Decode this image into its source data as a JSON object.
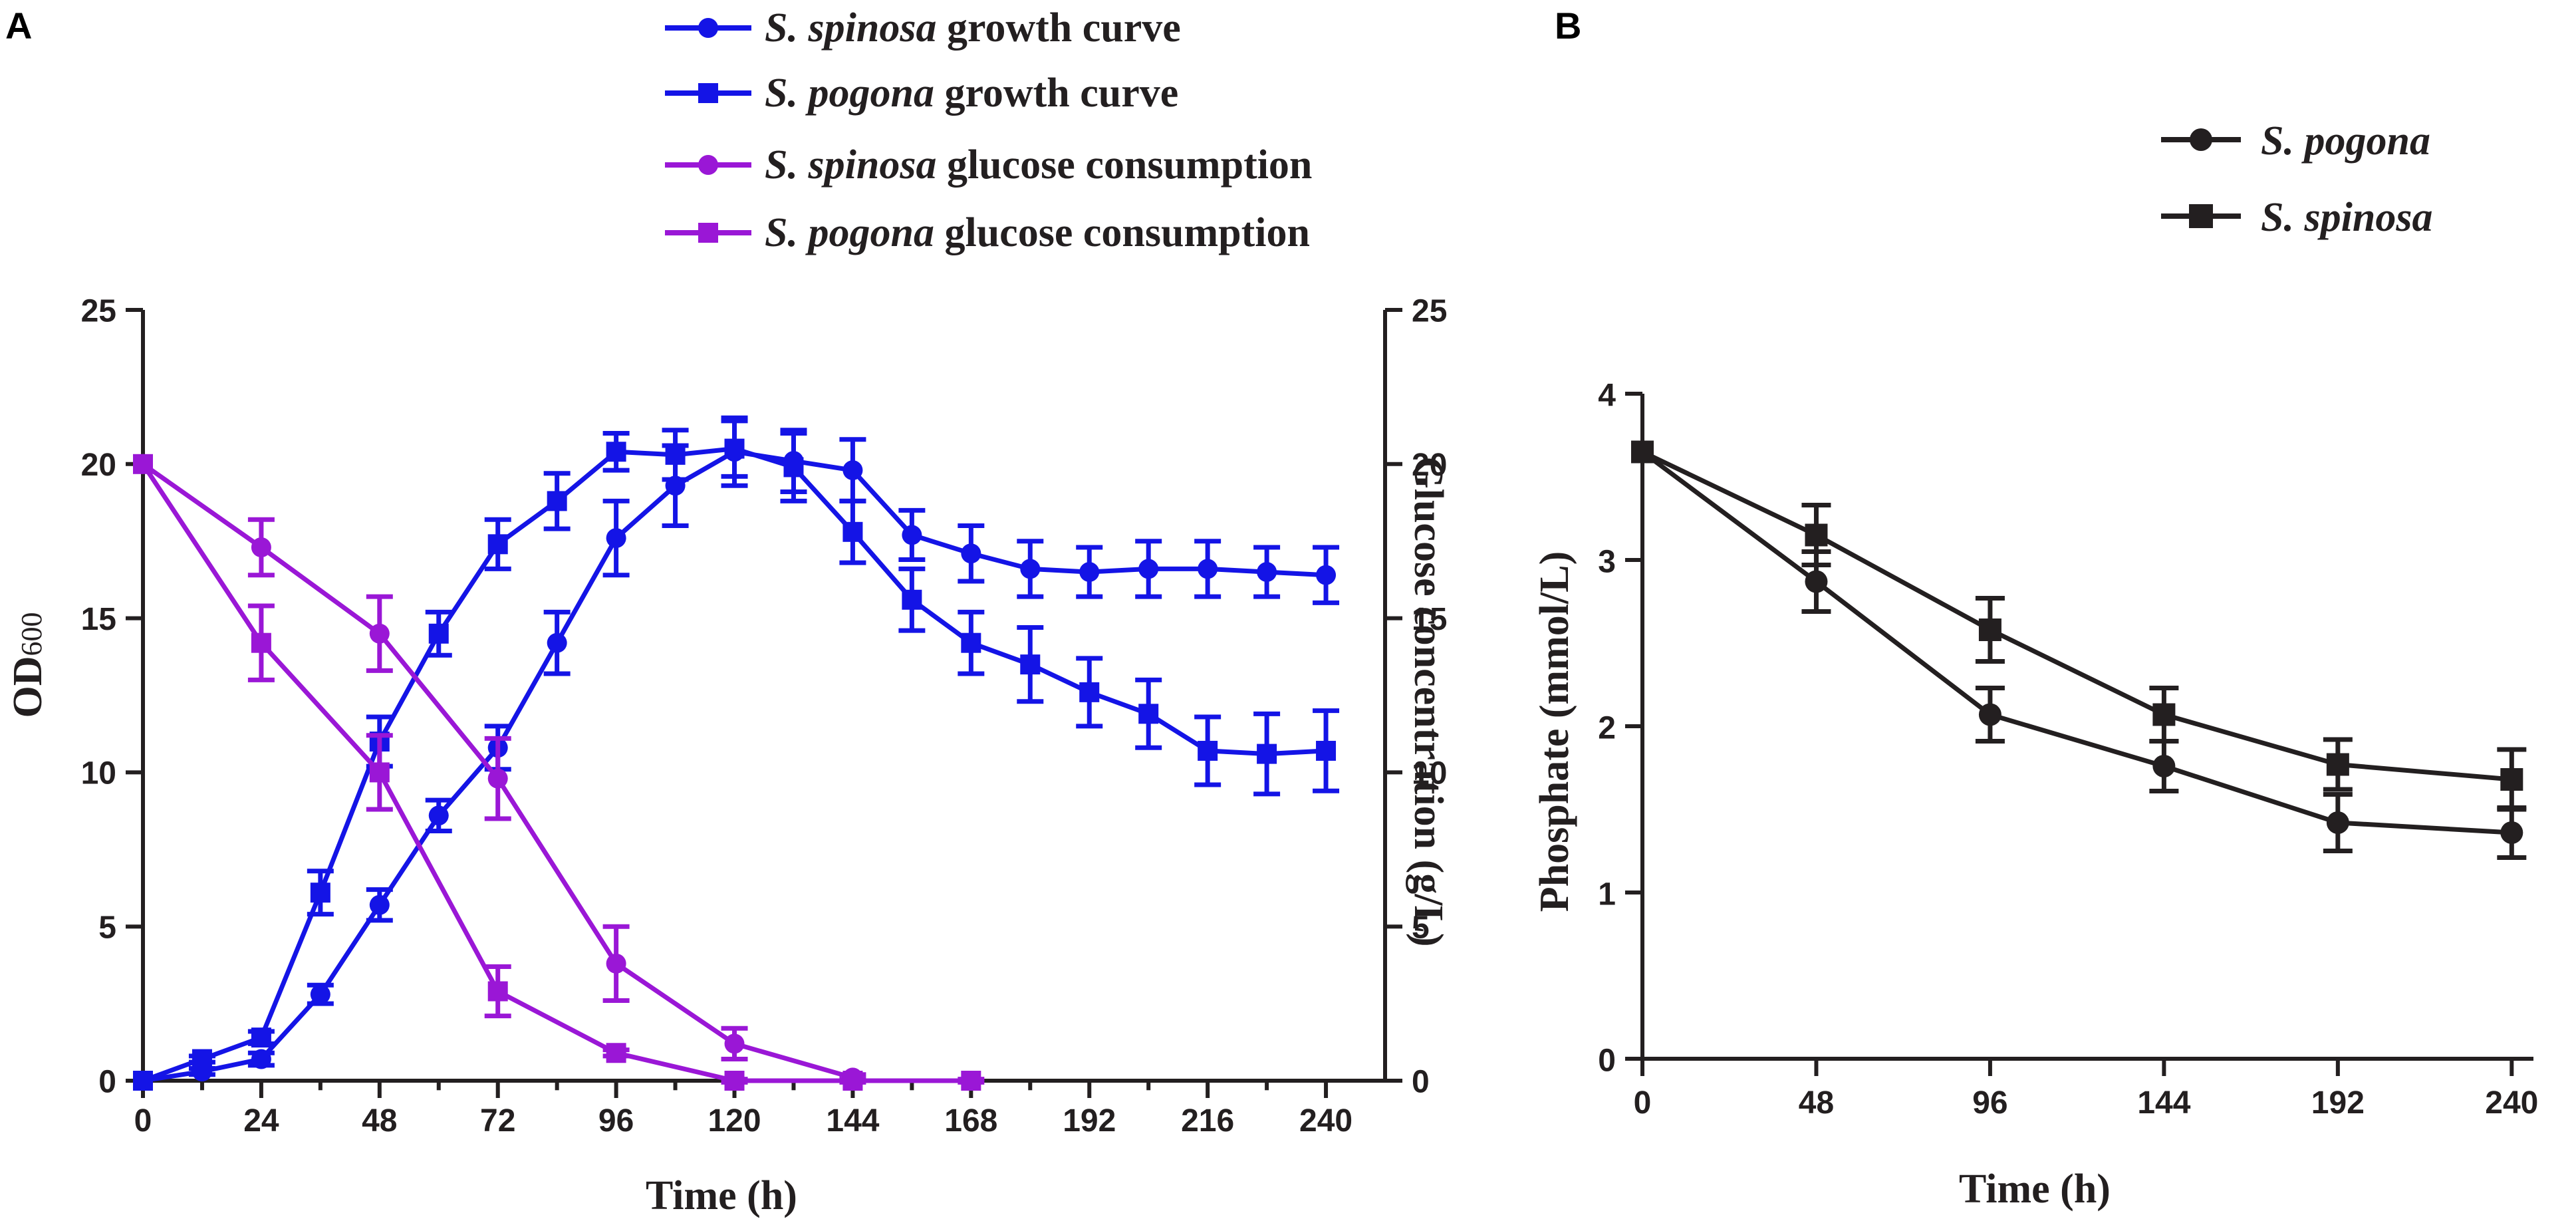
{
  "panels": {
    "A": "A",
    "B": "B"
  },
  "colors": {
    "blue": "#1414e6",
    "purple": "#9a17d6",
    "black": "#231f20"
  },
  "chart_data": [
    {
      "type": "line",
      "panel": "A",
      "title": "",
      "xlabel": "Time (h)",
      "ylabel": "OD600",
      "ylabel_main": "OD",
      "ylabel_sub": "600",
      "y2label": "Glucose concentration (g/L)",
      "xlim": [
        0,
        252
      ],
      "ylim": [
        0,
        25
      ],
      "y2lim": [
        0,
        25
      ],
      "xticks": [
        "0",
        "24",
        "48",
        "72",
        "96",
        "120",
        "144",
        "168",
        "192",
        "216",
        "240"
      ],
      "yticks": [
        "0",
        "5",
        "10",
        "15",
        "20",
        "25"
      ],
      "y2ticks": [
        "0",
        "5",
        "10",
        "15",
        "20",
        "25"
      ],
      "legend_position": "top",
      "series": [
        {
          "name": "S. spinosa growth curve",
          "legend_species": "S. spinosa",
          "legend_rest": " growth curve",
          "color": "blue",
          "marker": "circle",
          "axis": "left",
          "x": [
            0,
            12,
            24,
            36,
            48,
            60,
            72,
            84,
            96,
            108,
            120,
            132,
            144,
            156,
            168,
            180,
            192,
            204,
            216,
            228,
            240
          ],
          "y": [
            0,
            0.3,
            0.7,
            2.8,
            5.7,
            8.6,
            10.8,
            14.2,
            17.6,
            19.3,
            20.4,
            20.1,
            19.8,
            17.7,
            17.1,
            16.6,
            16.5,
            16.6,
            16.6,
            16.5,
            16.4
          ],
          "err": [
            0,
            0.1,
            0.2,
            0.3,
            0.5,
            0.5,
            0.7,
            1.0,
            1.2,
            1.3,
            1.1,
            1.0,
            1.0,
            0.8,
            0.9,
            0.9,
            0.8,
            0.9,
            0.9,
            0.8,
            0.9
          ]
        },
        {
          "name": "S. pogona growth curve",
          "legend_species": "S. pogona",
          "legend_rest": " growth curve",
          "color": "blue",
          "marker": "square",
          "axis": "left",
          "x": [
            0,
            12,
            24,
            36,
            48,
            60,
            72,
            84,
            96,
            108,
            120,
            132,
            144,
            156,
            168,
            180,
            192,
            204,
            216,
            228,
            240
          ],
          "y": [
            0,
            0.7,
            1.4,
            6.1,
            11.0,
            14.5,
            17.4,
            18.8,
            20.4,
            20.3,
            20.5,
            19.9,
            17.8,
            15.6,
            14.2,
            13.5,
            12.6,
            11.9,
            10.7,
            10.6,
            10.7
          ],
          "err": [
            0,
            0.1,
            0.2,
            0.7,
            0.8,
            0.7,
            0.8,
            0.9,
            0.6,
            0.8,
            0.9,
            1.1,
            1.0,
            1.0,
            1.0,
            1.2,
            1.1,
            1.1,
            1.1,
            1.3,
            1.3
          ]
        },
        {
          "name": "S. spinosa glucose consumption",
          "legend_species": "S. spinosa",
          "legend_rest": " glucose consumption",
          "color": "purple",
          "marker": "circle",
          "axis": "right",
          "x": [
            0,
            24,
            48,
            72,
            96,
            120,
            144
          ],
          "y": [
            20,
            17.3,
            14.5,
            9.8,
            3.8,
            1.2,
            0.1
          ],
          "err": [
            0,
            0.9,
            1.2,
            1.3,
            1.2,
            0.5,
            0.1
          ]
        },
        {
          "name": "S. pogona glucose consumption",
          "legend_species": "S. pogona",
          "legend_rest": " glucose consumption",
          "color": "purple",
          "marker": "square",
          "axis": "right",
          "x": [
            0,
            24,
            48,
            72,
            96,
            120,
            144,
            168
          ],
          "y": [
            20,
            14.2,
            10.0,
            2.9,
            0.9,
            0.0,
            0.0,
            0.0
          ],
          "err": [
            0,
            1.2,
            1.2,
            0.8,
            0.1,
            0.05,
            0.05,
            0.05
          ]
        }
      ]
    },
    {
      "type": "line",
      "panel": "B",
      "title": "",
      "xlabel": "Time (h)",
      "ylabel": "Phosphate (mmol/L)",
      "xlim": [
        0,
        246
      ],
      "ylim": [
        0,
        4
      ],
      "xticks": [
        "0",
        "48",
        "96",
        "144",
        "192",
        "240"
      ],
      "yticks": [
        "0",
        "1",
        "2",
        "3",
        "4"
      ],
      "legend_position": "top-right",
      "series": [
        {
          "name": "S. pogona",
          "color": "black",
          "marker": "circle",
          "x": [
            0,
            48,
            96,
            144,
            192,
            240
          ],
          "y": [
            3.65,
            2.87,
            2.07,
            1.76,
            1.42,
            1.36
          ],
          "err": [
            0,
            0.18,
            0.16,
            0.15,
            0.17,
            0.15
          ]
        },
        {
          "name": "S. spinosa",
          "color": "black",
          "marker": "square",
          "x": [
            0,
            48,
            96,
            144,
            192,
            240
          ],
          "y": [
            3.65,
            3.15,
            2.58,
            2.07,
            1.77,
            1.68
          ],
          "err": [
            0,
            0.18,
            0.19,
            0.16,
            0.15,
            0.18
          ]
        }
      ]
    }
  ]
}
